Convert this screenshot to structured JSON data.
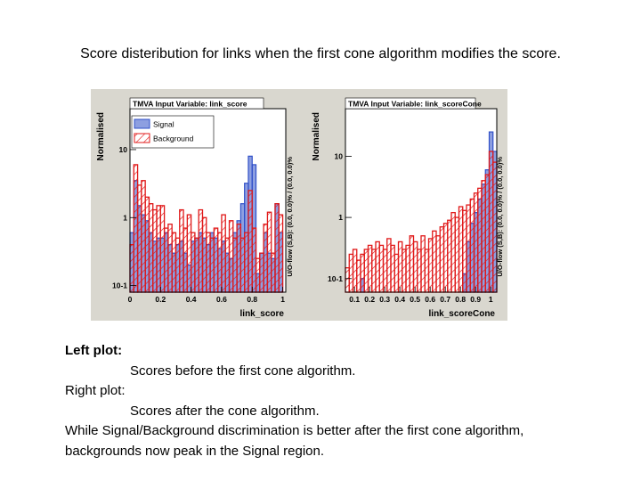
{
  "slide": {
    "title": "Score disteribution  for links when the first cone algorithm modifies the score.",
    "left_label": "Left plot:",
    "left_desc": "Scores before the first cone algorithm.",
    "right_label": "Right plot:",
    "right_desc": "Scores after the cone algorithm.",
    "conclusion": "While Signal/Background discrimination is better after the first cone algorithm, backgrounds now peak in the Signal region."
  },
  "colors": {
    "signal": "#3050c8",
    "background": "#e01818",
    "frame_bg": "#d9d7cf",
    "plot_bg": "#ffffff"
  },
  "chart_data": [
    {
      "type": "bar",
      "title": "TMVA Input Variable: link_score",
      "xlabel": "link_score",
      "ylabel": "Normalised",
      "side_label": "U/O-flow (S,B): (0.0, 0.0)% / (0.0, 0.0)%",
      "yscale": "log",
      "xlim": [
        0,
        1.02
      ],
      "ylim": [
        0.08,
        40
      ],
      "xticks": [
        0,
        0.2,
        0.4,
        0.6,
        0.8,
        1
      ],
      "xtick_labels": [
        "0",
        "0.2",
        "0.4",
        "0.6",
        "0.8",
        "1"
      ],
      "yticks": [
        0.1,
        1,
        10
      ],
      "ytick_labels": [
        "10-1",
        "1",
        "10"
      ],
      "legend": [
        "Signal",
        "Background"
      ],
      "bin_edges": [
        0,
        0.025,
        0.05,
        0.075,
        0.1,
        0.125,
        0.15,
        0.175,
        0.2,
        0.225,
        0.25,
        0.275,
        0.3,
        0.325,
        0.35,
        0.375,
        0.4,
        0.425,
        0.45,
        0.475,
        0.5,
        0.525,
        0.55,
        0.575,
        0.6,
        0.625,
        0.65,
        0.675,
        0.7,
        0.725,
        0.75,
        0.775,
        0.8,
        0.825,
        0.85,
        0.875,
        0.9,
        0.925,
        0.95,
        0.975,
        1.0
      ],
      "series": [
        {
          "name": "Signal",
          "values": [
            0.6,
            3.5,
            1.5,
            1.1,
            0.9,
            0.6,
            0.45,
            0.5,
            0.5,
            0.6,
            0.4,
            0.3,
            0.4,
            0.45,
            0.3,
            0.2,
            0.45,
            0.5,
            0.6,
            0.5,
            0.4,
            0.6,
            0.5,
            0.35,
            0.45,
            0.3,
            0.25,
            0.6,
            0.9,
            1.6,
            3.2,
            8.0,
            6.0,
            0.15,
            0.3,
            0.6,
            0.3,
            0.25,
            1.6,
            0.6
          ]
        },
        {
          "name": "Background",
          "values": [
            0.4,
            6.0,
            3.0,
            3.5,
            2.0,
            1.6,
            1.3,
            1.5,
            1.5,
            0.7,
            0.8,
            0.6,
            0.5,
            1.3,
            0.7,
            1.1,
            0.6,
            0.5,
            1.3,
            1.0,
            0.6,
            0.5,
            0.7,
            0.6,
            1.1,
            0.5,
            0.9,
            0.5,
            0.8,
            0.5,
            0.6,
            2.5,
            0.7,
            0.25,
            0.3,
            0.8,
            1.2,
            0.3,
            1.6,
            1.1
          ]
        }
      ]
    },
    {
      "type": "bar",
      "title": "TMVA Input Variable: link_scoreCone",
      "xlabel": "link_scoreCone",
      "ylabel": "Normalised",
      "side_label": "U/O-flow (S,B): (0.0, 0.0)% / (0.0, 0.0)%",
      "yscale": "log",
      "xlim": [
        0.04,
        1.04
      ],
      "ylim": [
        0.06,
        60
      ],
      "xticks": [
        0.1,
        0.2,
        0.3,
        0.4,
        0.5,
        0.6,
        0.7,
        0.8,
        0.9,
        1
      ],
      "xtick_labels": [
        "0.1",
        "0.2",
        "0.3",
        "0.4",
        "0.5",
        "0.6",
        "0.7",
        "0.8",
        "0.9",
        "1"
      ],
      "yticks": [
        0.1,
        1,
        10
      ],
      "ytick_labels": [
        "10-1",
        "1",
        "10"
      ],
      "legend": [],
      "bin_edges": [
        0.04,
        0.065,
        0.09,
        0.115,
        0.14,
        0.165,
        0.19,
        0.215,
        0.24,
        0.265,
        0.29,
        0.315,
        0.34,
        0.365,
        0.39,
        0.415,
        0.44,
        0.465,
        0.49,
        0.515,
        0.54,
        0.565,
        0.59,
        0.615,
        0.64,
        0.665,
        0.69,
        0.715,
        0.74,
        0.765,
        0.79,
        0.815,
        0.84,
        0.865,
        0.89,
        0.915,
        0.94,
        0.965,
        0.99,
        1.015,
        1.04
      ],
      "series": [
        {
          "name": "Signal",
          "values": [
            0.06,
            0.06,
            0.06,
            0.06,
            0.1,
            0.06,
            0.06,
            0.06,
            0.06,
            0.06,
            0.06,
            0.06,
            0.06,
            0.06,
            0.06,
            0.06,
            0.06,
            0.06,
            0.06,
            0.06,
            0.06,
            0.06,
            0.06,
            0.06,
            0.06,
            0.06,
            0.06,
            0.06,
            0.06,
            0.06,
            0.06,
            0.12,
            0.4,
            0.8,
            1.2,
            2.0,
            3.5,
            6.0,
            25.0,
            12.0
          ]
        },
        {
          "name": "Background",
          "values": [
            0.15,
            0.25,
            0.3,
            0.2,
            0.25,
            0.3,
            0.35,
            0.3,
            0.4,
            0.35,
            0.3,
            0.45,
            0.35,
            0.25,
            0.4,
            0.3,
            0.35,
            0.5,
            0.4,
            0.3,
            0.5,
            0.3,
            0.45,
            0.6,
            0.5,
            0.7,
            0.8,
            0.9,
            1.2,
            1.0,
            1.5,
            1.3,
            1.6,
            2.0,
            2.5,
            3.0,
            4.0,
            5.0,
            12.0,
            8.0
          ]
        }
      ]
    }
  ]
}
